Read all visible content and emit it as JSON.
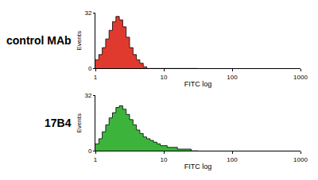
{
  "chart_data": [
    {
      "type": "histogram",
      "title": "control MAb",
      "x_label": "FITC log",
      "y_label": "Events",
      "bins": [
        1,
        1.122,
        1.259,
        1.413,
        1.585,
        1.778,
        1.995,
        2.239,
        2.512,
        2.818,
        3.162,
        3.548,
        3.981,
        4.467,
        5.012,
        5.623,
        6.31,
        7.079,
        7.943,
        8.913,
        10,
        11.22,
        12.59,
        14.13,
        15.85,
        17.78,
        19.95,
        22.39,
        25.12,
        28.18,
        31.62
      ],
      "values": [
        5,
        8,
        12,
        17,
        22,
        27,
        30,
        28,
        24,
        18,
        12,
        8,
        5,
        3,
        1,
        0,
        0,
        0,
        0,
        0,
        0,
        0,
        0,
        0,
        0,
        0,
        0,
        0,
        0,
        0
      ],
      "color": "#e03a2e",
      "xlim": [
        1,
        1000
      ],
      "xticks": [
        1,
        10,
        100,
        1000
      ],
      "ylim": [
        0,
        32
      ],
      "yticks": [
        0,
        32
      ],
      "log": "x",
      "grid": false
    },
    {
      "type": "histogram",
      "title": "17B4",
      "x_label": "FITC log",
      "y_label": "Events",
      "bins": [
        1,
        1.122,
        1.259,
        1.413,
        1.585,
        1.778,
        1.995,
        2.239,
        2.512,
        2.818,
        3.162,
        3.548,
        3.981,
        4.467,
        5.012,
        5.623,
        6.31,
        7.079,
        7.943,
        8.913,
        10,
        11.22,
        12.59,
        14.13,
        15.85,
        17.78,
        19.95,
        22.39,
        25.12,
        28.18,
        31.62
      ],
      "values": [
        4,
        7,
        11,
        15,
        19,
        22,
        25,
        26,
        24,
        21,
        18,
        15,
        12,
        10,
        8,
        7,
        6,
        5,
        4,
        3,
        3,
        2,
        2,
        2,
        1,
        1,
        1,
        1,
        0,
        0
      ],
      "color": "#3cb43c",
      "xlim": [
        1,
        1000
      ],
      "xticks": [
        1,
        10,
        100,
        1000
      ],
      "ylim": [
        0,
        32
      ],
      "yticks": [
        0,
        32
      ],
      "log": "x",
      "grid": false
    }
  ]
}
